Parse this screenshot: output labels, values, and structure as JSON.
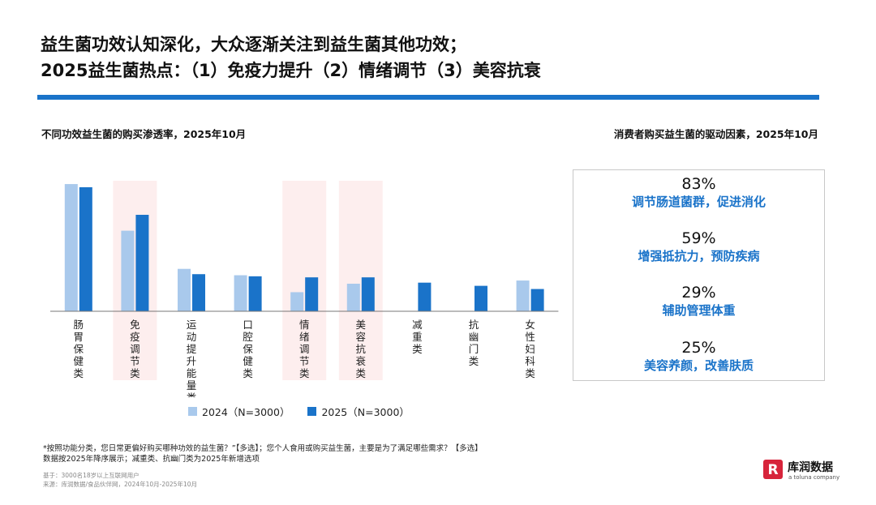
{
  "title_line1": "益生菌功效认知深化，大众逐渐关注到益生菌其他功效；",
  "title_line2": "2025益生菌热点：（1）免疫力提升（2）情绪调节（3）美容抗衰",
  "left_subtitle": "不同功效益生菌的购买渗透率，2025年10月",
  "right_subtitle": "消费者购买益生菌的驱动因素，2025年10月",
  "colors": {
    "accent": "#1a73c9",
    "series2024": "#a9c9ec",
    "series2025": "#1a73c9",
    "highlight": "#fdeeee",
    "axis": "#777777"
  },
  "chart_data": {
    "type": "bar",
    "title": "不同功效益生菌的购买渗透率，2025年10月",
    "categories": [
      "肠胃保健类",
      "免疫调节类",
      "运动提升能量类",
      "口腔保健类",
      "情绪调节类",
      "美容抗衰类",
      "减重类",
      "抗幽门类",
      "女性妇科类"
    ],
    "series": [
      {
        "name": "2024（N=3000）",
        "values": [
          60,
          38,
          20,
          17,
          9,
          13,
          null,
          null,
          14.5
        ]
      },
      {
        "name": "2025（N=3000）",
        "values": [
          58.5,
          45.5,
          17.5,
          16.5,
          16,
          16,
          13.5,
          12,
          10.5
        ]
      }
    ],
    "highlighted_categories": [
      "免疫调节类",
      "情绪调节类",
      "美容抗衰类"
    ],
    "ylim": [
      0,
      65
    ],
    "xlabel": "",
    "ylabel": "",
    "legend_position": "bottom",
    "grid": false
  },
  "drivers": [
    {
      "value": "83%",
      "label": "调节肠道菌群，促进消化"
    },
    {
      "value": "59%",
      "label": "增强抵抗力，预防疾病"
    },
    {
      "value": "29%",
      "label": "辅助管理体重"
    },
    {
      "value": "25%",
      "label": "美容养颜，改善肤质"
    }
  ],
  "footnote_line1": "*按照功能分类，您日常更偏好购买哪种功效的益生菌？”【多选】；您个人食用或购买益生菌，主要是为了满足哪些需求？【多选】",
  "footnote_line2": "数据按2025年降序展示；减重类、抗幽门类为2025年新增选项",
  "source_base": "基于：3000名18岁以上互联网用户",
  "source_from": "来源：库润数据/食品伙伴网，2024年10月-2025年10月",
  "logo": {
    "name": "库润数据",
    "tagline": "a toluna company",
    "mark_letter": "R"
  }
}
